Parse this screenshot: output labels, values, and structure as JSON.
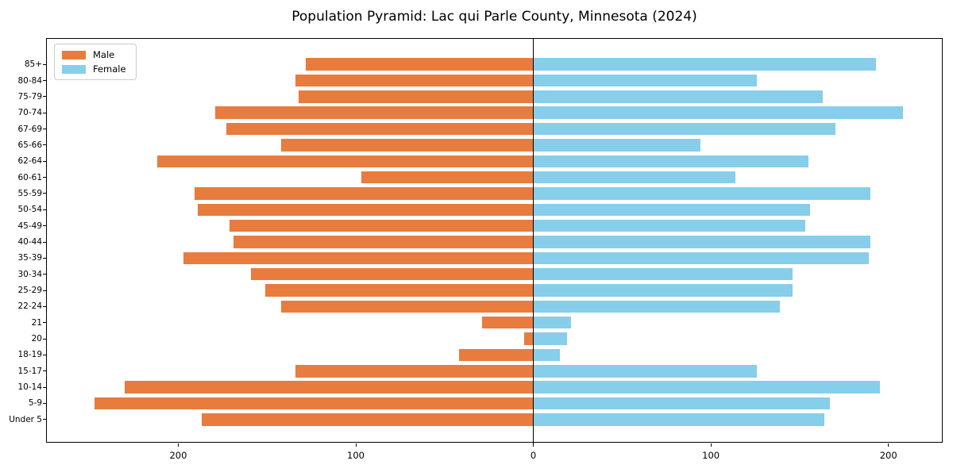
{
  "chart_data": {
    "type": "bar",
    "subtype": "population-pyramid",
    "orientation": "horizontal",
    "title": "Population Pyramid: Lac qui Parle County, Minnesota (2024)",
    "categories_top_to_bottom": [
      "85+",
      "80-84",
      "75-79",
      "70-74",
      "67-69",
      "65-66",
      "62-64",
      "60-61",
      "55-59",
      "50-54",
      "45-49",
      "40-44",
      "35-39",
      "30-34",
      "25-29",
      "22-24",
      "21",
      "20",
      "18-19",
      "15-17",
      "10-14",
      "5-9",
      "Under 5"
    ],
    "series": [
      {
        "name": "Male",
        "side": "left",
        "color": "#e87c3e",
        "values": [
          128,
          134,
          132,
          179,
          173,
          142,
          212,
          97,
          191,
          189,
          171,
          169,
          197,
          159,
          151,
          142,
          29,
          5,
          42,
          134,
          230,
          247,
          187
        ]
      },
      {
        "name": "Female",
        "side": "right",
        "color": "#87ceeb",
        "values": [
          193,
          126,
          163,
          208,
          170,
          94,
          155,
          114,
          190,
          156,
          153,
          190,
          189,
          146,
          146,
          139,
          21,
          19,
          15,
          126,
          195,
          167,
          164
        ]
      }
    ],
    "x_ticks": [
      -200,
      -100,
      0,
      100,
      200
    ],
    "x_tick_labels": [
      "200",
      "100",
      "0",
      "100",
      "200"
    ],
    "xlim": [
      -274,
      231
    ],
    "grid": false,
    "legend_position": "upper-left",
    "axis_color": "#000000",
    "background_color": "#ffffff"
  }
}
